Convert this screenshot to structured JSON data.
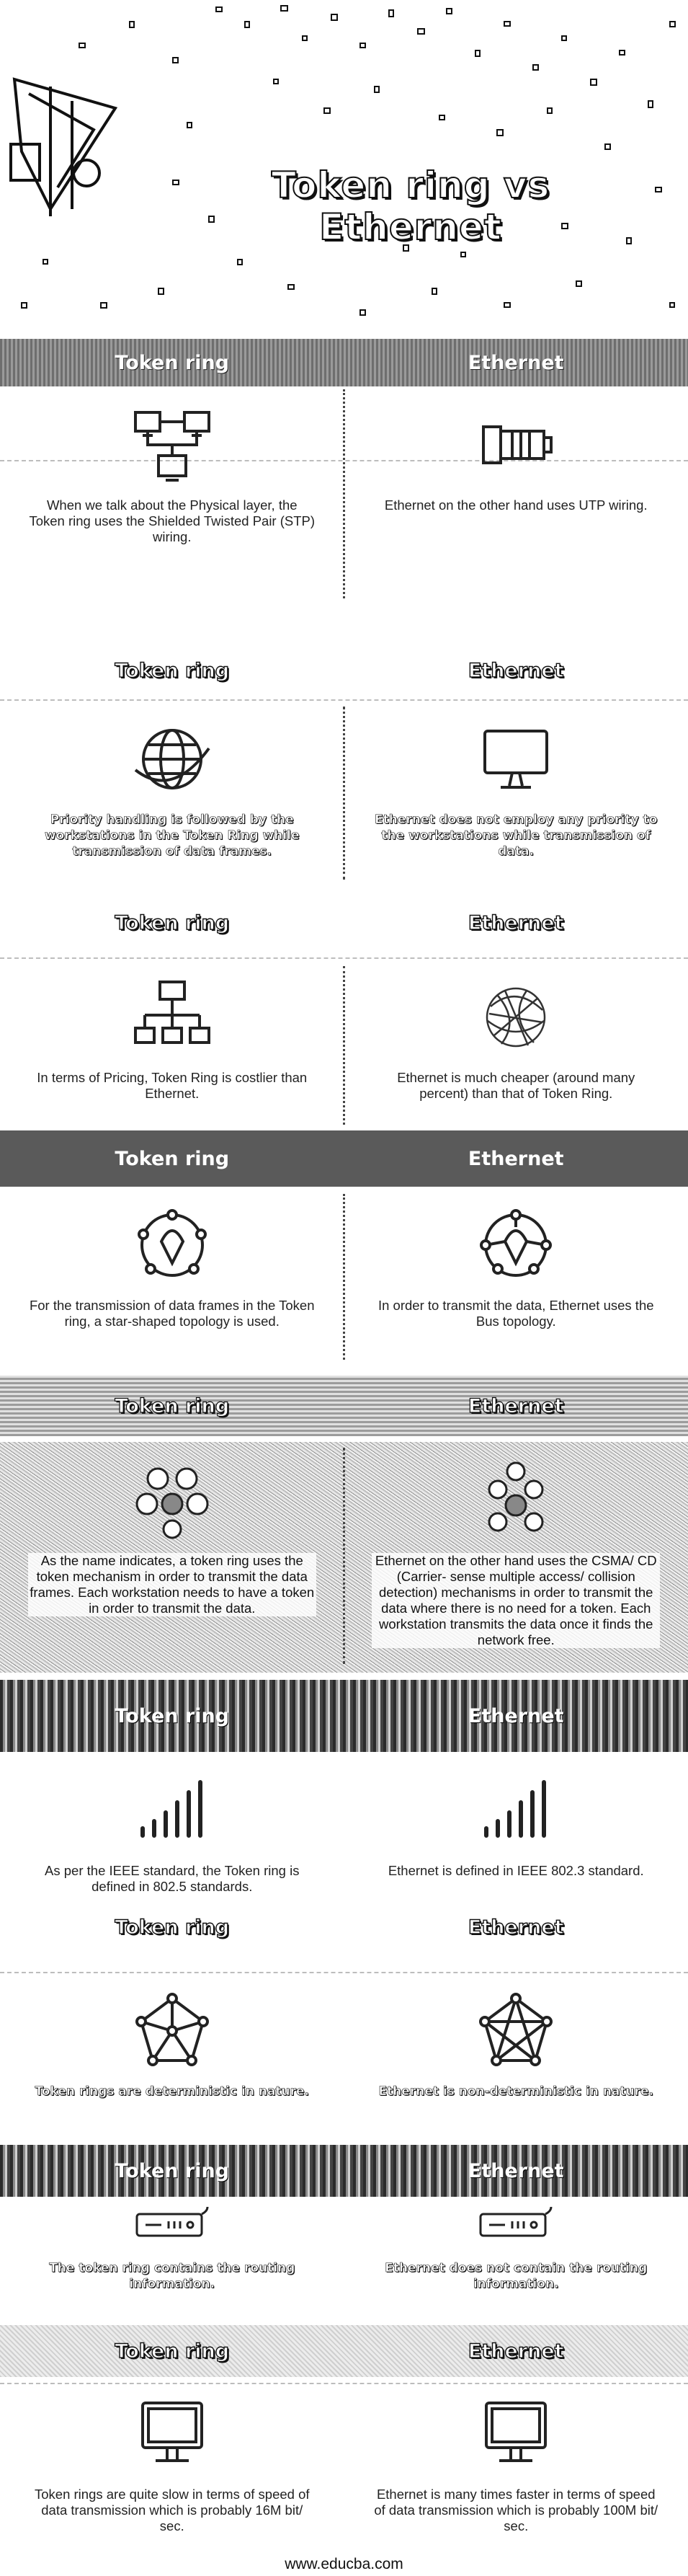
{
  "hero": {
    "title_line1": "Token ring vs",
    "title_line2": "Ethernet"
  },
  "labels": {
    "left": "Token ring",
    "right": "Ethernet"
  },
  "sections": [
    {
      "left_icon": "computer-network-icon",
      "right_icon": "ethernet-connector-icon",
      "left_text": "When we talk about the Physical layer, the Token ring uses the Shielded Twisted Pair (STP) wiring.",
      "right_text": "Ethernet on the other hand uses UTP wiring."
    },
    {
      "left_icon": "globe-icon",
      "right_icon": "monitor-icon",
      "left_text": "Priority handling is followed by the workstations in the Token Ring while transmission of data frames.",
      "right_text": "Ethernet does not employ any priority to the workstations while transmission of data."
    },
    {
      "left_icon": "hierarchy-icon",
      "right_icon": "mesh-sphere-icon",
      "left_text": "In terms of Pricing, Token Ring is costlier than Ethernet.",
      "right_text": "Ethernet is much cheaper (around many percent) than that of Token Ring."
    },
    {
      "left_icon": "ring-topology-icon",
      "right_icon": "bus-topology-icon",
      "left_text": "For the transmission of data frames in the Token ring, a star-shaped topology is used.",
      "right_text": "In order to transmit the data, Ethernet uses the Bus topology."
    },
    {
      "left_icon": "token-nodes-icon",
      "right_icon": "csma-nodes-icon",
      "left_text": "As the name indicates, a token ring uses the token mechanism in order to transmit the data frames. Each workstation needs to have a token in order to transmit the data.",
      "right_text": "Ethernet on the other hand uses the CSMA/ CD (Carrier- sense multiple access/ collision detection) mechanisms in order to transmit the data where there is no need for a token. Each workstation transmits the data once it finds the network free."
    },
    {
      "left_icon": "signal-bars-icon",
      "right_icon": "signal-bars-icon",
      "left_text": "As per the IEEE standard, the Token ring is defined in 802.5 standards.",
      "right_text": "Ethernet is defined in IEEE 802.3 standard."
    },
    {
      "left_icon": "network-graph-icon",
      "right_icon": "network-graph-icon",
      "left_text": "Token rings are deterministic in nature.",
      "right_text": "Ethernet is non-deterministic in nature."
    },
    {
      "left_icon": "router-icon",
      "right_icon": "router-icon",
      "left_text": "The token ring contains the routing information.",
      "right_text": "Ethernet does not contain the routing information."
    },
    {
      "left_icon": "desktop-icon",
      "right_icon": "desktop-icon",
      "left_text": "Token rings are quite slow in terms of speed of data transmission which is probably 16M bit/ sec.",
      "right_text": "Ethernet is many times faster in terms of speed of data transmission which is probably 100M bit/ sec."
    }
  ],
  "footer": {
    "site": "www.educba.com"
  }
}
